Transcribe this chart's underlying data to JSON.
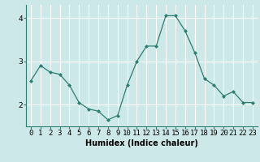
{
  "x": [
    0,
    1,
    2,
    3,
    4,
    5,
    6,
    7,
    8,
    9,
    10,
    11,
    12,
    13,
    14,
    15,
    16,
    17,
    18,
    19,
    20,
    21,
    22,
    23
  ],
  "y": [
    2.55,
    2.9,
    2.75,
    2.7,
    2.45,
    2.05,
    1.9,
    1.85,
    1.65,
    1.75,
    2.45,
    3.0,
    3.35,
    3.35,
    4.05,
    4.05,
    3.7,
    3.2,
    2.6,
    2.45,
    2.2,
    2.3,
    2.05,
    2.05
  ],
  "line_color": "#2e7d71",
  "marker": "D",
  "marker_size": 2.0,
  "bg_color": "#cce8e8",
  "grid_color": "#ffffff",
  "xlabel": "Humidex (Indice chaleur)",
  "xlabel_fontsize": 7,
  "tick_fontsize": 6.5,
  "ylim": [
    1.5,
    4.3
  ],
  "yticks": [
    2,
    3,
    4
  ],
  "xticks": [
    0,
    1,
    2,
    3,
    4,
    5,
    6,
    7,
    8,
    9,
    10,
    11,
    12,
    13,
    14,
    15,
    16,
    17,
    18,
    19,
    20,
    21,
    22,
    23
  ]
}
